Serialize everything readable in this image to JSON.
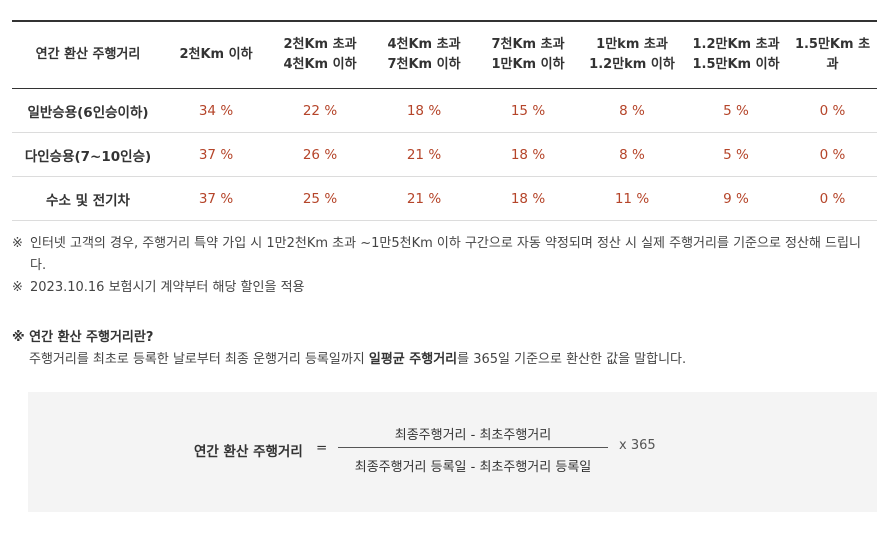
{
  "table": {
    "headers": [
      [
        "연간 환산 주행거리"
      ],
      [
        "2천Km 이하"
      ],
      [
        "2천Km 초과",
        "4천Km 이하"
      ],
      [
        "4천Km 초과",
        "7천Km 이하"
      ],
      [
        "7천Km 초과",
        "1만Km 이하"
      ],
      [
        "1만km 초과",
        "1.2만km 이하"
      ],
      [
        "1.2만Km 초과",
        "1.5만Km 이하"
      ],
      [
        "1.5만Km 초과"
      ]
    ],
    "rows": [
      {
        "label": "일반승용(6인승이하)",
        "values": [
          "34 %",
          "22 %",
          "18 %",
          "15 %",
          "8 %",
          "5 %",
          "0 %"
        ]
      },
      {
        "label": "다인승용(7~10인승)",
        "values": [
          "37 %",
          "26 %",
          "21 %",
          "18 %",
          "8 %",
          "5 %",
          "0 %"
        ]
      },
      {
        "label": "수소 및 전기차",
        "values": [
          "37 %",
          "25 %",
          "21 %",
          "18 %",
          "11 %",
          "9 %",
          "0 %"
        ]
      }
    ],
    "rate_color": "#b5452a"
  },
  "notes": {
    "mark": "※",
    "items": [
      "인터넷 고객의 경우, 주행거리 특약 가입 시 1만2천Km 초과 ~1만5천Km 이하 구간으로 자동 약정되며 정산 시 실제 주행거리를 기준으로 정산해 드립니다.",
      "2023.10.16 보험시기 계약부터 해당 할인을 적용"
    ]
  },
  "definition": {
    "title": "※ 연간 환산 주행거리란?",
    "body_before": "주행거리를 최초로 등록한 날로부터 최종 운행거리 등록일까지 ",
    "body_bold": "일평균 주행거리",
    "body_after": "를 365일 기준으로 환산한 값을 말합니다."
  },
  "formula": {
    "label": "연간 환산 주행거리",
    "equals": "=",
    "numerator": "최종주행거리 - 최초주행거리",
    "denominator": "최종주행거리 등록일 - 최초주행거리 등록일",
    "multiplier": "x 365"
  }
}
